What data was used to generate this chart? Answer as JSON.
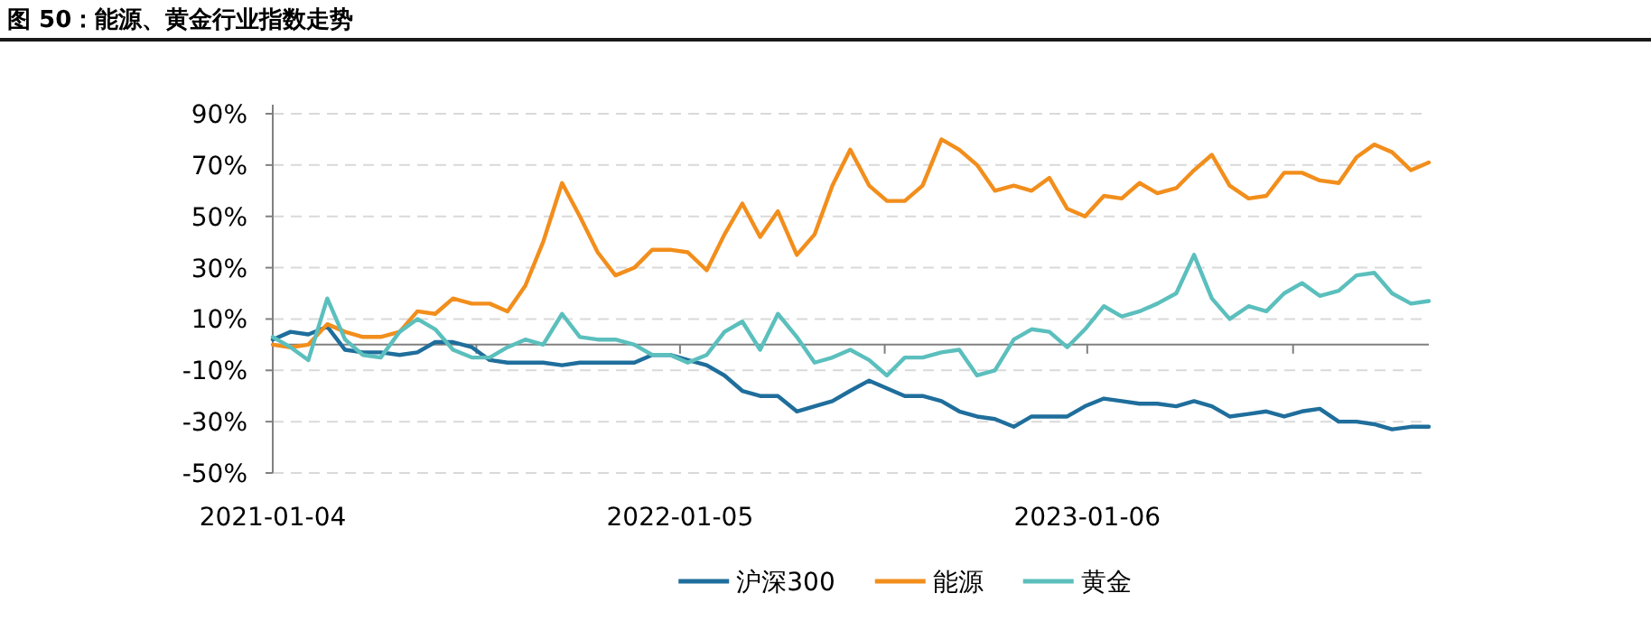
{
  "chart_data": {
    "type": "line",
    "title": "图 50：能源、黄金行业指数走势",
    "x": [
      "2021-01-04",
      "2021-01-20",
      "2021-02-05",
      "2021-02-22",
      "2021-03-10",
      "2021-03-26",
      "2021-04-11",
      "2021-04-28",
      "2021-05-14",
      "2021-05-30",
      "2021-06-15",
      "2021-07-02",
      "2021-07-18",
      "2021-08-03",
      "2021-08-19",
      "2021-09-04",
      "2021-09-21",
      "2021-10-07",
      "2021-10-23",
      "2021-11-08",
      "2021-11-25",
      "2021-12-11",
      "2021-12-27",
      "2022-01-12",
      "2022-01-29",
      "2022-02-14",
      "2022-03-02",
      "2022-03-18",
      "2022-04-03",
      "2022-04-20",
      "2022-05-06",
      "2022-05-22",
      "2022-06-07",
      "2022-06-24",
      "2022-07-10",
      "2022-07-26",
      "2022-08-11",
      "2022-08-28",
      "2022-09-13",
      "2022-09-29",
      "2022-10-15",
      "2022-11-01",
      "2022-11-17",
      "2022-12-03",
      "2022-12-19",
      "2023-01-04",
      "2023-01-21",
      "2023-02-06",
      "2023-02-22",
      "2023-03-10",
      "2023-03-27",
      "2023-04-12",
      "2023-04-28",
      "2023-05-14",
      "2023-05-31",
      "2023-06-16",
      "2023-07-02",
      "2023-07-18",
      "2023-08-03",
      "2023-08-20",
      "2023-09-05",
      "2023-09-21",
      "2023-10-07",
      "2023-10-24",
      "2023-11-09"
    ],
    "series": [
      {
        "name": "沪深300",
        "color": "#1f6e9c",
        "values": [
          2,
          5,
          4,
          7,
          -2,
          -3,
          -3,
          -4,
          -3,
          1,
          1,
          -1,
          -6,
          -7,
          -7,
          -7,
          -8,
          -7,
          -7,
          -7,
          -7,
          -4,
          -4,
          -6,
          -8,
          -12,
          -18,
          -20,
          -20,
          -26,
          -24,
          -22,
          -18,
          -14,
          -17,
          -20,
          -20,
          -22,
          -26,
          -28,
          -29,
          -32,
          -28,
          -28,
          -28,
          -24,
          -21,
          -22,
          -23,
          -23,
          -24,
          -22,
          -24,
          -28,
          -27,
          -26,
          -28,
          -26,
          -25,
          -30,
          -30,
          -31,
          -33,
          -32,
          -32
        ]
      },
      {
        "name": "能源",
        "color": "#f28e1c",
        "values": [
          0,
          -1,
          0,
          8,
          5,
          3,
          3,
          5,
          13,
          12,
          18,
          16,
          16,
          13,
          23,
          40,
          63,
          50,
          36,
          27,
          30,
          37,
          37,
          36,
          29,
          43,
          55,
          42,
          52,
          35,
          43,
          62,
          76,
          62,
          56,
          56,
          62,
          80,
          76,
          70,
          60,
          62,
          60,
          65,
          53,
          50,
          58,
          57,
          63,
          59,
          61,
          68,
          74,
          62,
          57,
          58,
          67,
          67,
          64,
          63,
          73,
          78,
          75,
          68,
          71
        ]
      },
      {
        "name": "黄金",
        "color": "#5bbfbd",
        "values": [
          3,
          -1,
          -6,
          18,
          2,
          -4,
          -5,
          5,
          10,
          6,
          -2,
          -5,
          -5,
          -1,
          2,
          0,
          12,
          3,
          2,
          2,
          0,
          -4,
          -4,
          -7,
          -4,
          5,
          9,
          -2,
          12,
          3,
          -7,
          -5,
          -2,
          -6,
          -12,
          -5,
          -5,
          -3,
          -2,
          -12,
          -10,
          2,
          6,
          5,
          -1,
          6,
          15,
          11,
          13,
          16,
          20,
          35,
          18,
          10,
          15,
          13,
          20,
          24,
          19,
          21,
          27,
          28,
          20,
          16,
          17
        ]
      }
    ],
    "xlim": [
      "2021-01-04",
      "2023-11-09"
    ],
    "xticks": [
      {
        "value": "2021-01-04",
        "label": "2021-01-04"
      },
      {
        "value": "2021-07-06",
        "label": null
      },
      {
        "value": "2022-01-05",
        "label": "2022-01-05"
      },
      {
        "value": "2022-07-08",
        "label": null
      },
      {
        "value": "2023-01-06",
        "label": "2023-01-06"
      },
      {
        "value": "2023-07-10",
        "label": null
      }
    ],
    "ylim": [
      -50,
      90
    ],
    "yticks": [
      {
        "value": -50,
        "label": "-50%"
      },
      {
        "value": -30,
        "label": "-30%"
      },
      {
        "value": -10,
        "label": "-10%"
      },
      {
        "value": 10,
        "label": "10%"
      },
      {
        "value": 30,
        "label": "30%"
      },
      {
        "value": 50,
        "label": "50%"
      },
      {
        "value": 70,
        "label": "70%"
      },
      {
        "value": 90,
        "label": "90%"
      }
    ],
    "grid": "y",
    "legend": "bottom"
  }
}
